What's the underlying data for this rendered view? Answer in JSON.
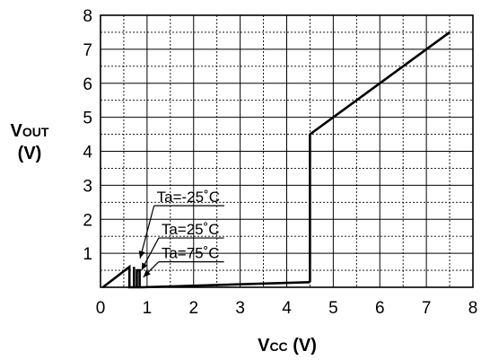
{
  "chart_data": {
    "type": "line",
    "title": "",
    "xlabel": {
      "main": "V",
      "sub": "CC",
      "unit": " (V)"
    },
    "ylabel": {
      "main": "V",
      "sub": "OUT",
      "unit": "(V)"
    },
    "xlim": [
      0,
      8
    ],
    "ylim": [
      0,
      8
    ],
    "x_ticks": [
      "0",
      "1",
      "2",
      "3",
      "4",
      "5",
      "6",
      "7",
      "8"
    ],
    "y_ticks": [
      "1",
      "2",
      "3",
      "4",
      "5",
      "6",
      "7",
      "8"
    ],
    "grid": {
      "major": true,
      "minor_dashed": true
    },
    "series": [
      {
        "label": "Ta=-25˚C",
        "points": [
          [
            0.05,
            0.0
          ],
          [
            0.62,
            0.6
          ],
          [
            0.62,
            0.0
          ],
          [
            0.88,
            0.0
          ],
          [
            4.5,
            0.15
          ]
        ]
      },
      {
        "label": "Ta=25˚C",
        "points": [
          [
            0.72,
            0.0
          ],
          [
            0.72,
            0.6
          ],
          [
            0.72,
            0.0
          ]
        ]
      },
      {
        "label": "Ta=75˚C",
        "points": [
          [
            0.78,
            0.0
          ],
          [
            0.78,
            0.5
          ],
          [
            0.84,
            0.5
          ],
          [
            0.84,
            0.0
          ]
        ]
      },
      {
        "label": "",
        "points": [
          [
            4.5,
            0.15
          ],
          [
            4.5,
            4.5
          ],
          [
            7.5,
            7.5
          ]
        ]
      }
    ],
    "annotations": [
      {
        "text": "Ta=-25˚C",
        "text_xy": [
          1.15,
          2.4
        ],
        "arrow_to": [
          0.85,
          0.85
        ]
      },
      {
        "text": "Ta=25˚C",
        "text_xy": [
          1.25,
          1.45
        ],
        "arrow_to": [
          0.88,
          0.5
        ]
      },
      {
        "text": "Ta=75˚C",
        "text_xy": [
          1.25,
          0.75
        ],
        "arrow_to": [
          0.92,
          0.3
        ]
      }
    ]
  }
}
